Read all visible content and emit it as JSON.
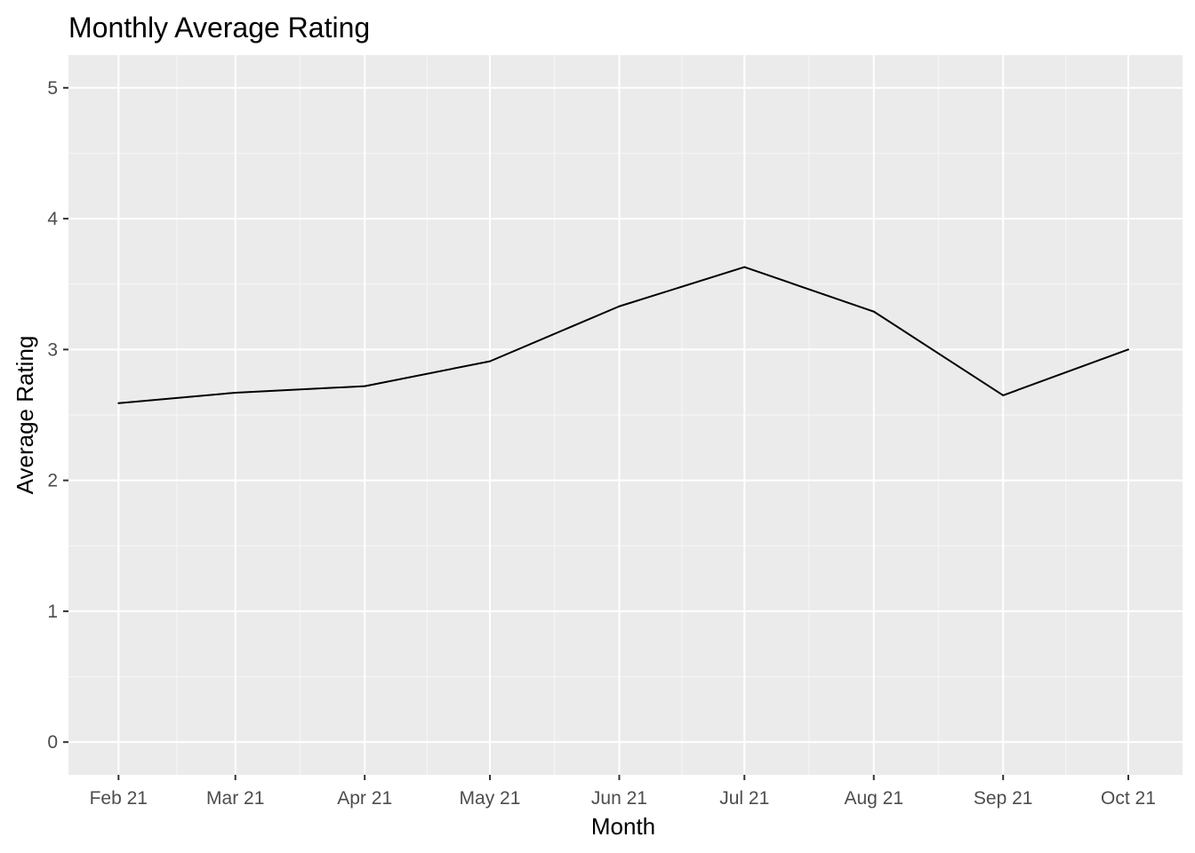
{
  "chart_data": {
    "type": "line",
    "title": "Monthly Average Rating",
    "xlabel": "Month",
    "ylabel": "Average Rating",
    "x_tick_labels": [
      "Feb 21",
      "Mar 21",
      "Apr 21",
      "May 21",
      "Jun 21",
      "Jul 21",
      "Aug 21",
      "Sep 21",
      "Oct 21"
    ],
    "y_ticks": [
      0,
      1,
      2,
      3,
      4,
      5
    ],
    "ylim": [
      -0.25,
      5.25
    ],
    "xlim": [
      "2021-01-20",
      "2021-10-14"
    ],
    "grid": true,
    "legend": "none",
    "series": [
      {
        "points": [
          {
            "x": "2021-02-01",
            "y": 2.59
          },
          {
            "x": "2021-03-01",
            "y": 2.67
          },
          {
            "x": "2021-04-01",
            "y": 2.72
          },
          {
            "x": "2021-05-01",
            "y": 2.91
          },
          {
            "x": "2021-06-01",
            "y": 3.33
          },
          {
            "x": "2021-07-01",
            "y": 3.63
          },
          {
            "x": "2021-08-01",
            "y": 3.29
          },
          {
            "x": "2021-09-01",
            "y": 2.65
          },
          {
            "x": "2021-10-01",
            "y": 3.0
          }
        ]
      }
    ],
    "colors": {
      "panel_background": "#ebebeb",
      "grid_major": "#ffffff",
      "grid_minor": "#f5f5f5",
      "line": "#000000",
      "tick_label": "#4d4d4d",
      "tick_mark": "#333333"
    }
  }
}
